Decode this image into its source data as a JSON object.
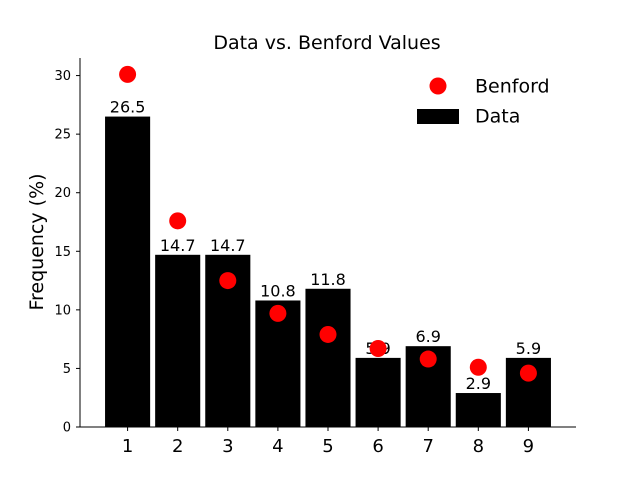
{
  "chart_data": {
    "type": "bar",
    "title": "Data vs. Benford Values",
    "xlabel": "",
    "ylabel": "Frequency (%)",
    "categories": [
      "1",
      "2",
      "3",
      "4",
      "5",
      "6",
      "7",
      "8",
      "9"
    ],
    "ylim": [
      0,
      31.5
    ],
    "yticks": [
      "0",
      "5",
      "10",
      "15",
      "20",
      "25",
      "30"
    ],
    "series": [
      {
        "name": "Data",
        "kind": "bar",
        "color": "#000000",
        "values": [
          26.5,
          14.7,
          14.7,
          10.8,
          11.8,
          5.9,
          6.9,
          2.9,
          5.9
        ],
        "labels": [
          "26.5",
          "14.7",
          "14.7",
          "10.8",
          "11.8",
          "5.9",
          "6.9",
          "2.9",
          "5.9"
        ]
      },
      {
        "name": "Benford",
        "kind": "scatter",
        "color": "#ff0000",
        "values": [
          30.1,
          17.6,
          12.5,
          9.7,
          7.9,
          6.7,
          5.8,
          5.1,
          4.6
        ]
      }
    ],
    "legend": {
      "placement": "top-right",
      "order": [
        "Benford",
        "Data"
      ]
    },
    "grid": false
  }
}
